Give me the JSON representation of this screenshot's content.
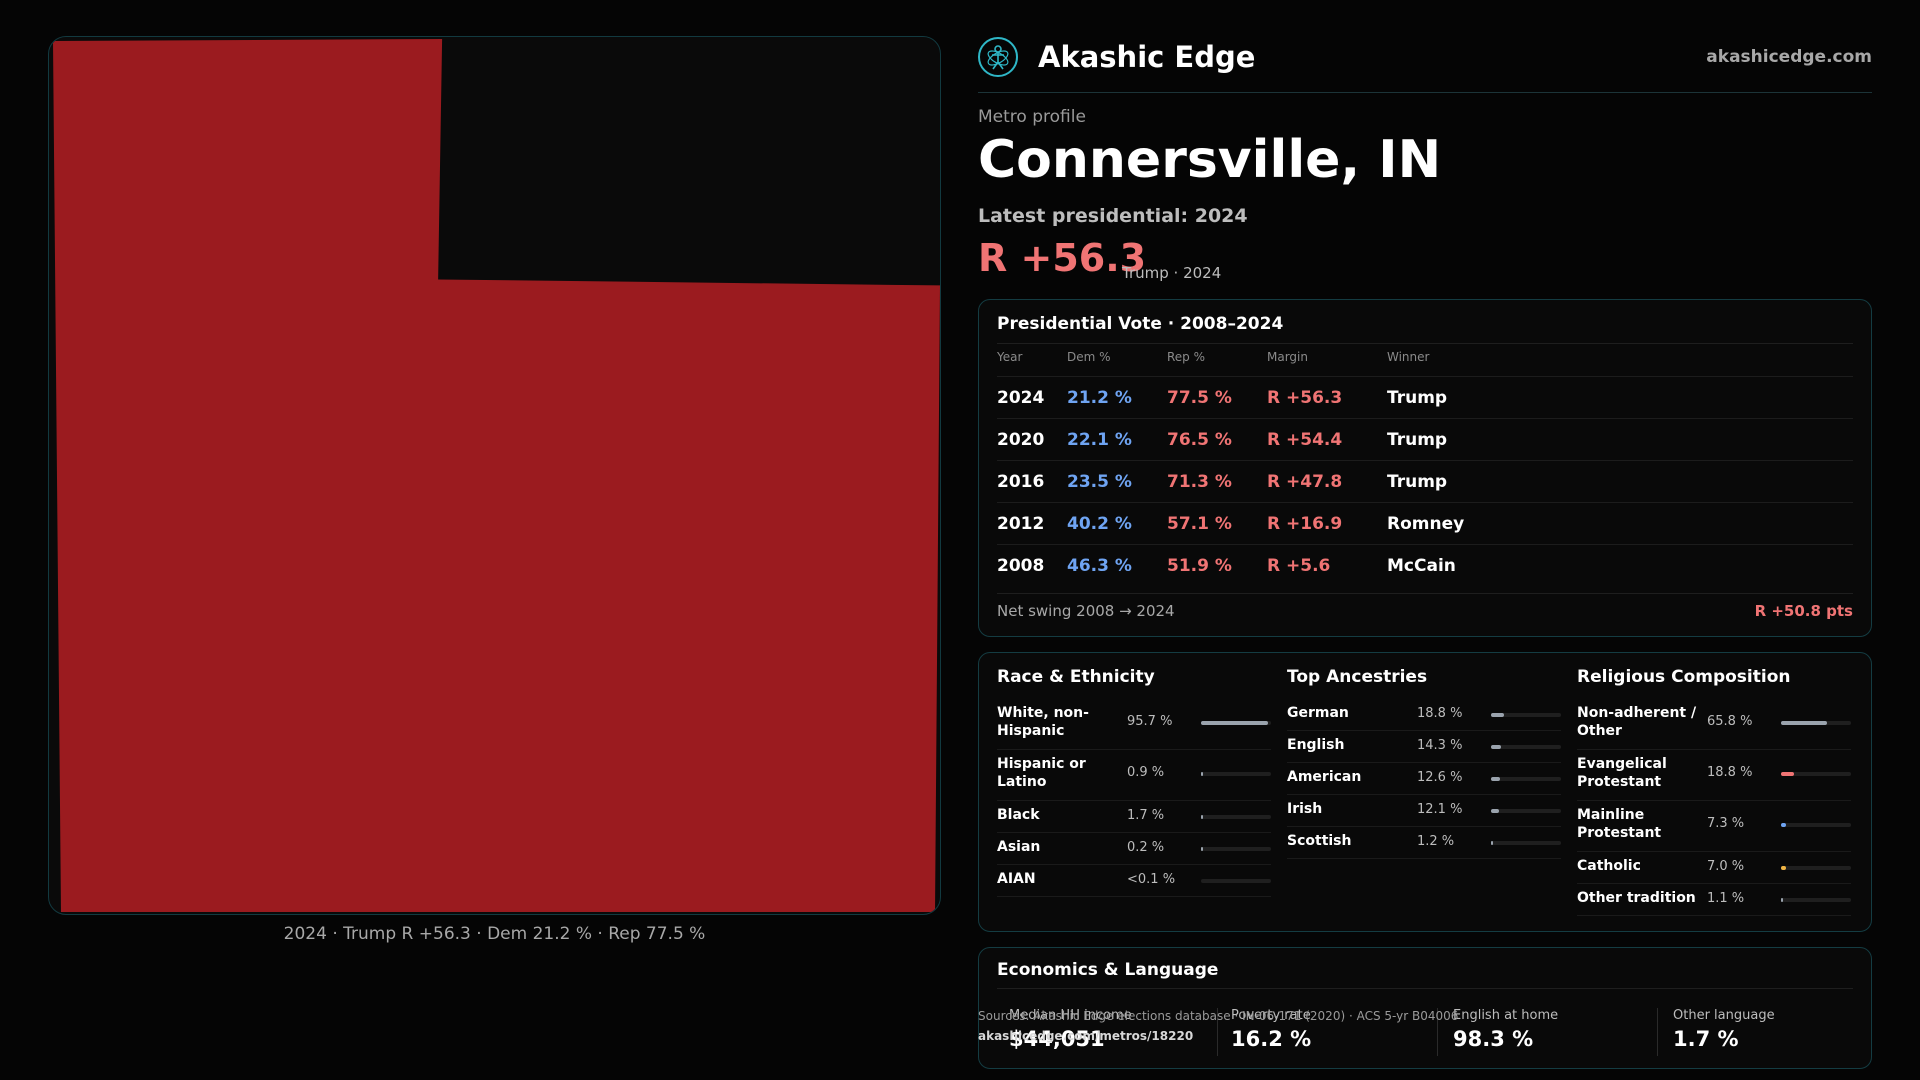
{
  "map": {
    "caption": "2024 · Trump R +56.3 · Dem 21.2 % · Rep 77.5 %",
    "fill_color": "#9b1b1f"
  },
  "header": {
    "brand": "Akashic Edge",
    "url": "akashicedge.com",
    "logo_icon": "atom-figure-icon"
  },
  "profile": {
    "eyebrow": "Metro profile",
    "title": "Connersville, IN",
    "latest_label": "Latest presidential: 2024",
    "margin": "R +56.3",
    "margin_sub": "Trump · 2024"
  },
  "presidential": {
    "title": "Presidential Vote · 2008–2024",
    "columns": [
      "Year",
      "Dem %",
      "Rep %",
      "Margin",
      "Winner"
    ],
    "rows": [
      {
        "year": "2024",
        "dem": "21.2 %",
        "rep": "77.5 %",
        "margin": "R +56.3",
        "winner": "Trump"
      },
      {
        "year": "2020",
        "dem": "22.1 %",
        "rep": "76.5 %",
        "margin": "R +54.4",
        "winner": "Trump"
      },
      {
        "year": "2016",
        "dem": "23.5 %",
        "rep": "71.3 %",
        "margin": "R +47.8",
        "winner": "Trump"
      },
      {
        "year": "2012",
        "dem": "40.2 %",
        "rep": "57.1 %",
        "margin": "R +16.9",
        "winner": "Romney"
      },
      {
        "year": "2008",
        "dem": "46.3 %",
        "rep": "51.9 %",
        "margin": "R +5.6",
        "winner": "McCain"
      }
    ],
    "swing_label": "Net swing 2008 → 2024",
    "swing_value": "R +50.8 pts"
  },
  "race": {
    "title": "Race & Ethnicity",
    "items": [
      {
        "label": "White, non-Hispanic",
        "value": "95.7 %",
        "fraction": 0.957,
        "color": "#9aa3ad"
      },
      {
        "label": "Hispanic or Latino",
        "value": "0.9 %",
        "fraction": 0.009,
        "color": "#9aa3ad"
      },
      {
        "label": "Black",
        "value": "1.7 %",
        "fraction": 0.017,
        "color": "#9aa3ad"
      },
      {
        "label": "Asian",
        "value": "0.2 %",
        "fraction": 0.002,
        "color": "#9aa3ad"
      },
      {
        "label": "AIAN",
        "value": "<0.1 %",
        "fraction": 0.0,
        "color": "#9aa3ad"
      }
    ]
  },
  "ancestry": {
    "title": "Top Ancestries",
    "items": [
      {
        "label": "German",
        "value": "18.8 %",
        "fraction": 0.188,
        "color": "#9aa3ad"
      },
      {
        "label": "English",
        "value": "14.3 %",
        "fraction": 0.143,
        "color": "#9aa3ad"
      },
      {
        "label": "American",
        "value": "12.6 %",
        "fraction": 0.126,
        "color": "#9aa3ad"
      },
      {
        "label": "Irish",
        "value": "12.1 %",
        "fraction": 0.121,
        "color": "#9aa3ad"
      },
      {
        "label": "Scottish",
        "value": "1.2 %",
        "fraction": 0.012,
        "color": "#9aa3ad"
      }
    ]
  },
  "religion": {
    "title": "Religious Composition",
    "items": [
      {
        "label": "Non-adherent / Other",
        "value": "65.8 %",
        "fraction": 0.658,
        "color": "#9aa3ad"
      },
      {
        "label": "Evangelical Protestant",
        "value": "18.8 %",
        "fraction": 0.188,
        "color": "#f07474"
      },
      {
        "label": "Mainline Protestant",
        "value": "7.3 %",
        "fraction": 0.073,
        "color": "#6fa4f2"
      },
      {
        "label": "Catholic",
        "value": "7.0 %",
        "fraction": 0.07,
        "color": "#f0b545"
      },
      {
        "label": "Other tradition",
        "value": "1.1 %",
        "fraction": 0.011,
        "color": "#9aa3ad"
      }
    ]
  },
  "economics": {
    "title": "Economics & Language",
    "cells": [
      {
        "label": "Median HH income",
        "value": "$44,051"
      },
      {
        "label": "Poverty rate",
        "value": "16.2 %"
      },
      {
        "label": "English at home",
        "value": "98.3 %"
      },
      {
        "label": "Other language",
        "value": "1.7 %"
      }
    ]
  },
  "footer": {
    "source": "Sources: Akashic Edge elections database · IN-06-171 (2020) · ACS 5-yr B04006",
    "source_url": "akashicedge.com/metros/18220"
  }
}
